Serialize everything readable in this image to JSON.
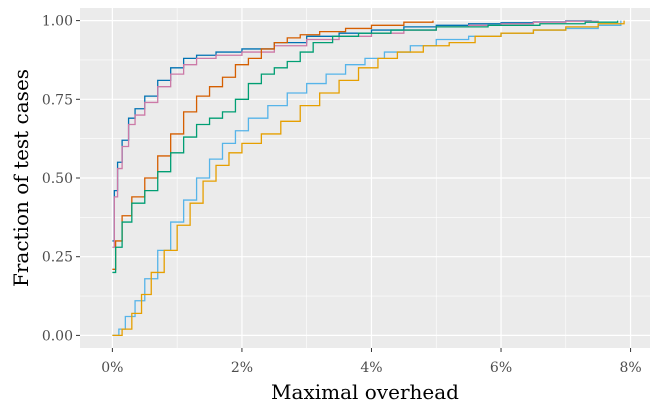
{
  "chart_data": {
    "type": "line",
    "title": "",
    "xlabel": "Maximal overhead",
    "ylabel": "Fraction of test cases",
    "xlim": [
      -0.5,
      8.3
    ],
    "ylim": [
      -0.04,
      1.04
    ],
    "grid": true,
    "legend": "none",
    "x_ticks": [
      {
        "value": 0,
        "label": "0%"
      },
      {
        "value": 2,
        "label": "2%"
      },
      {
        "value": 4,
        "label": "4%"
      },
      {
        "value": 6,
        "label": "6%"
      },
      {
        "value": 8,
        "label": "8%"
      }
    ],
    "y_ticks": [
      {
        "value": 0,
        "label": "0.00"
      },
      {
        "value": 0.25,
        "label": "0.25"
      },
      {
        "value": 0.5,
        "label": "0.50"
      },
      {
        "value": 0.75,
        "label": "0.75"
      },
      {
        "value": 1,
        "label": "1.00"
      }
    ],
    "series": [
      {
        "color": "#0072B2",
        "x": [
          0,
          0.03,
          0.08,
          0.15,
          0.25,
          0.35,
          0.5,
          0.7,
          0.9,
          1.1,
          1.3,
          1.6,
          2.0,
          2.5,
          3.0,
          3.5,
          4.0,
          4.5,
          5.0,
          5.5,
          6.0,
          6.5,
          7.0,
          7.4
        ],
        "y": [
          0.3,
          0.46,
          0.55,
          0.62,
          0.69,
          0.72,
          0.76,
          0.81,
          0.85,
          0.88,
          0.89,
          0.9,
          0.91,
          0.93,
          0.95,
          0.96,
          0.97,
          0.98,
          0.985,
          0.99,
          0.993,
          0.996,
          0.999,
          1.0
        ]
      },
      {
        "color": "#CC79A7",
        "x": [
          0,
          0.03,
          0.08,
          0.15,
          0.25,
          0.35,
          0.5,
          0.7,
          0.9,
          1.1,
          1.3,
          1.6,
          2.0,
          2.5,
          3.0,
          3.5,
          4.0,
          4.5,
          5.0,
          5.5,
          6.0,
          6.5,
          7.0,
          7.5
        ],
        "y": [
          0.28,
          0.44,
          0.53,
          0.6,
          0.67,
          0.7,
          0.74,
          0.79,
          0.83,
          0.86,
          0.88,
          0.89,
          0.9,
          0.92,
          0.94,
          0.95,
          0.96,
          0.97,
          0.98,
          0.985,
          0.99,
          0.995,
          0.998,
          1.0
        ]
      },
      {
        "color": "#D55E00",
        "x": [
          0,
          0.05,
          0.15,
          0.3,
          0.5,
          0.7,
          0.9,
          1.1,
          1.3,
          1.5,
          1.7,
          1.9,
          2.1,
          2.3,
          2.5,
          2.7,
          2.9,
          3.2,
          3.6,
          4.0,
          4.5,
          4.95
        ],
        "y": [
          0.21,
          0.3,
          0.38,
          0.44,
          0.5,
          0.57,
          0.64,
          0.71,
          0.76,
          0.79,
          0.82,
          0.86,
          0.88,
          0.91,
          0.93,
          0.945,
          0.955,
          0.965,
          0.975,
          0.985,
          0.995,
          1.0
        ]
      },
      {
        "color": "#009E73",
        "x": [
          0,
          0.05,
          0.15,
          0.3,
          0.5,
          0.7,
          0.9,
          1.1,
          1.3,
          1.5,
          1.7,
          1.9,
          2.1,
          2.3,
          2.5,
          2.7,
          2.9,
          3.1,
          3.4,
          3.8,
          4.3,
          5.0,
          5.8,
          6.6,
          7.3,
          7.8
        ],
        "y": [
          0.2,
          0.28,
          0.36,
          0.42,
          0.46,
          0.52,
          0.58,
          0.63,
          0.67,
          0.69,
          0.71,
          0.75,
          0.8,
          0.83,
          0.85,
          0.87,
          0.9,
          0.93,
          0.95,
          0.96,
          0.97,
          0.98,
          0.985,
          0.99,
          0.995,
          1.0
        ]
      },
      {
        "color": "#56B4E9",
        "x": [
          0,
          0.1,
          0.2,
          0.35,
          0.5,
          0.7,
          0.9,
          1.1,
          1.3,
          1.5,
          1.7,
          1.9,
          2.1,
          2.4,
          2.7,
          3.0,
          3.3,
          3.6,
          3.9,
          4.2,
          4.6,
          5.0,
          5.5,
          6.0,
          6.5,
          7.0,
          7.5,
          7.85
        ],
        "y": [
          0.0,
          0.02,
          0.06,
          0.11,
          0.18,
          0.27,
          0.36,
          0.43,
          0.5,
          0.56,
          0.61,
          0.65,
          0.69,
          0.73,
          0.77,
          0.8,
          0.83,
          0.86,
          0.88,
          0.9,
          0.92,
          0.94,
          0.95,
          0.96,
          0.97,
          0.975,
          0.985,
          1.0
        ]
      },
      {
        "color": "#E69F00",
        "x": [
          0,
          0.15,
          0.3,
          0.45,
          0.6,
          0.8,
          1.0,
          1.2,
          1.4,
          1.6,
          1.8,
          2.0,
          2.3,
          2.6,
          2.9,
          3.2,
          3.5,
          3.8,
          4.1,
          4.4,
          4.8,
          5.2,
          5.6,
          6.0,
          6.5,
          7.0,
          7.5,
          7.9
        ],
        "y": [
          0.0,
          0.02,
          0.07,
          0.13,
          0.2,
          0.27,
          0.35,
          0.42,
          0.49,
          0.54,
          0.58,
          0.61,
          0.64,
          0.68,
          0.73,
          0.77,
          0.81,
          0.85,
          0.88,
          0.9,
          0.92,
          0.93,
          0.95,
          0.96,
          0.97,
          0.98,
          0.99,
          1.0
        ]
      }
    ]
  }
}
